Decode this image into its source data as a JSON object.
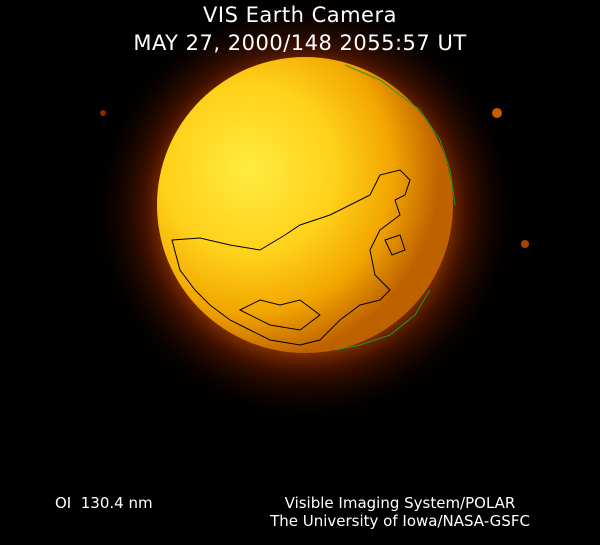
{
  "header": {
    "title": "VIS Earth Camera",
    "timestamp": "MAY 27, 2000/148 2055:57 UT"
  },
  "footer": {
    "wavelength": "OI  130.4 nm",
    "credit_line1": "Visible Imaging System/POLAR",
    "credit_line2": "The University of Iowa/NASA-GSFC"
  },
  "colors": {
    "background": "#000000",
    "globe_core": "#ffe23a",
    "globe_edge": "#e07a00",
    "glow": "#8a2a00",
    "coastline": "#000000",
    "terminator_coast": "#1f9a2a"
  }
}
